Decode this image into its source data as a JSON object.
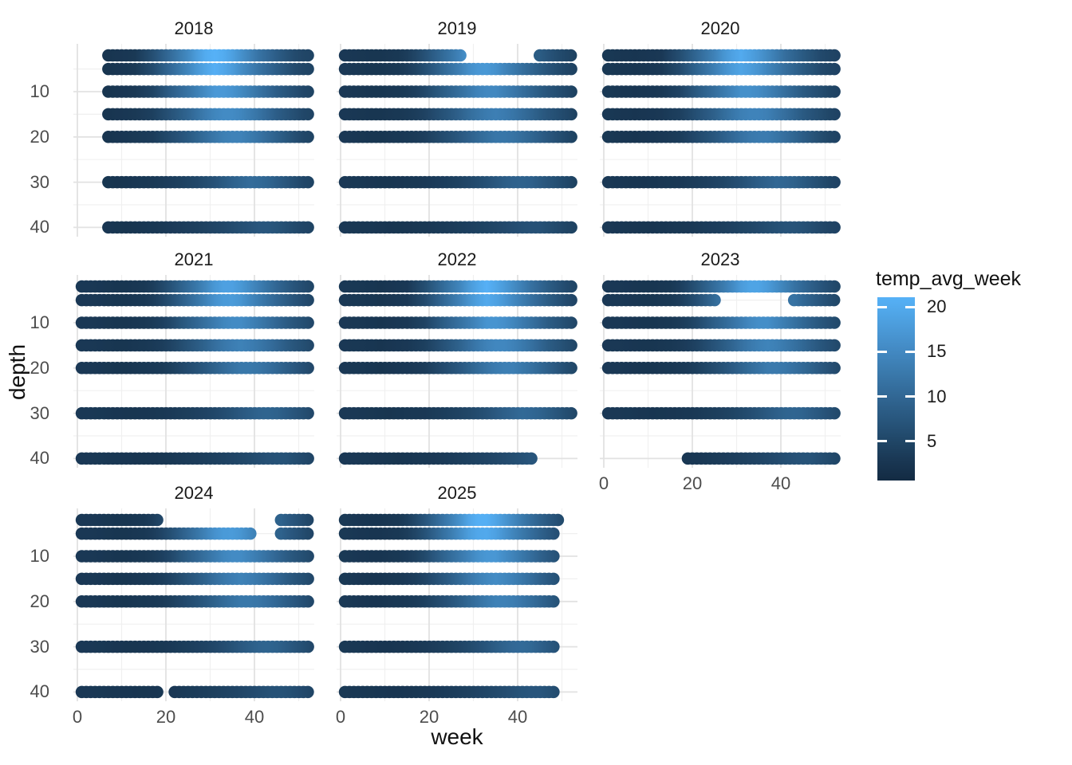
{
  "figure": {
    "background": "#ffffff"
  },
  "axes": {
    "x_title": "week",
    "y_title": "depth",
    "x_ticks": [
      0,
      20,
      40
    ],
    "x_minor": [
      10,
      30,
      50
    ],
    "y_ticks": [
      10,
      20,
      30,
      40
    ],
    "y_minor": [
      5,
      15,
      25,
      35
    ]
  },
  "legend": {
    "title": "temp_avg_week",
    "ticks": [
      20,
      15,
      10,
      5
    ],
    "bar_min": 0.6,
    "bar_max": 21.1
  },
  "colors": {
    "low": "#132B43",
    "high": "#56B1F7",
    "t_low": 1,
    "t_high": 21,
    "grid_major": "#e2e2e2",
    "grid_minor": "#f0f0f0",
    "strip_text": "#1a1a1a",
    "tick_text": "#4d4d4d",
    "axis_title_text": "#111111"
  },
  "chart_data": {
    "type": "scatter",
    "title": "",
    "xlabel": "week",
    "ylabel": "depth",
    "color_label": "temp_avg_week",
    "facet_by": "year",
    "x_range": [
      1,
      53
    ],
    "y_axis_reversed_depth": true,
    "depths": [
      2,
      5,
      10,
      15,
      20,
      30,
      40
    ],
    "color_range": [
      1,
      21
    ],
    "legend_position": "right",
    "grid": true,
    "depth_temp_knots": {
      "2": [
        [
          1,
          3
        ],
        [
          8,
          2.5
        ],
        [
          14,
          3
        ],
        [
          18,
          6
        ],
        [
          22,
          10
        ],
        [
          26,
          14
        ],
        [
          29,
          18
        ],
        [
          32,
          20
        ],
        [
          35,
          18
        ],
        [
          38,
          15
        ],
        [
          42,
          11
        ],
        [
          46,
          8
        ],
        [
          50,
          5.5
        ],
        [
          53,
          4.5
        ]
      ],
      "5": [
        [
          1,
          3
        ],
        [
          8,
          2.5
        ],
        [
          14,
          3
        ],
        [
          18,
          5.5
        ],
        [
          22,
          9.5
        ],
        [
          26,
          13.5
        ],
        [
          29,
          17
        ],
        [
          32,
          19
        ],
        [
          35,
          17.5
        ],
        [
          38,
          14.5
        ],
        [
          42,
          11
        ],
        [
          46,
          8
        ],
        [
          50,
          5.5
        ],
        [
          53,
          4.5
        ]
      ],
      "10": [
        [
          1,
          3
        ],
        [
          8,
          2.5
        ],
        [
          14,
          3
        ],
        [
          18,
          4.5
        ],
        [
          22,
          8
        ],
        [
          26,
          11
        ],
        [
          29,
          13.5
        ],
        [
          32,
          16
        ],
        [
          35,
          16
        ],
        [
          38,
          14
        ],
        [
          42,
          11
        ],
        [
          46,
          8
        ],
        [
          50,
          6
        ],
        [
          53,
          4.5
        ]
      ],
      "15": [
        [
          1,
          3
        ],
        [
          8,
          2.5
        ],
        [
          14,
          3
        ],
        [
          18,
          4
        ],
        [
          22,
          6.5
        ],
        [
          26,
          9
        ],
        [
          29,
          11.5
        ],
        [
          32,
          13.5
        ],
        [
          35,
          14.5
        ],
        [
          38,
          13.5
        ],
        [
          42,
          11
        ],
        [
          46,
          8
        ],
        [
          50,
          6
        ],
        [
          53,
          4.5
        ]
      ],
      "20": [
        [
          1,
          3
        ],
        [
          8,
          2.5
        ],
        [
          14,
          3
        ],
        [
          18,
          3.5
        ],
        [
          22,
          5.5
        ],
        [
          26,
          7.5
        ],
        [
          29,
          9.5
        ],
        [
          32,
          11.5
        ],
        [
          35,
          13
        ],
        [
          38,
          13
        ],
        [
          42,
          11
        ],
        [
          46,
          8.5
        ],
        [
          50,
          6
        ],
        [
          53,
          4.5
        ]
      ],
      "30": [
        [
          1,
          3
        ],
        [
          10,
          2.5
        ],
        [
          18,
          3
        ],
        [
          24,
          4
        ],
        [
          28,
          5
        ],
        [
          32,
          6.5
        ],
        [
          36,
          8.5
        ],
        [
          40,
          10
        ],
        [
          43,
          9.5
        ],
        [
          46,
          8
        ],
        [
          50,
          6
        ],
        [
          53,
          4.5
        ]
      ],
      "40": [
        [
          1,
          3
        ],
        [
          12,
          2.5
        ],
        [
          20,
          3
        ],
        [
          28,
          4
        ],
        [
          34,
          5
        ],
        [
          38,
          6
        ],
        [
          42,
          7
        ],
        [
          45,
          7
        ],
        [
          48,
          6
        ],
        [
          51,
          5
        ],
        [
          53,
          4.5
        ]
      ]
    },
    "facets": [
      {
        "year": "2018",
        "row": 0,
        "col": 0,
        "show_x_axis": false,
        "adjust": {
          "amp": 1.1,
          "shift": -1
        },
        "segments": {
          "2": [
            [
              7,
              53
            ]
          ],
          "5": [
            [
              7,
              53
            ]
          ],
          "10": [
            [
              7,
              53
            ]
          ],
          "15": [
            [
              7,
              53
            ]
          ],
          "20": [
            [
              7,
              53
            ]
          ],
          "30": [
            [
              7,
              53
            ]
          ],
          "40": [
            [
              7,
              53
            ]
          ]
        }
      },
      {
        "year": "2019",
        "row": 0,
        "col": 1,
        "show_x_axis": false,
        "adjust": {
          "amp": 0.92,
          "shift": 0
        },
        "segments": {
          "2": [
            [
              1,
              28
            ],
            [
              45,
              53
            ]
          ],
          "5": [
            [
              1,
              53
            ]
          ],
          "10": [
            [
              1,
              53
            ]
          ],
          "15": [
            [
              1,
              53
            ]
          ],
          "20": [
            [
              1,
              53
            ]
          ],
          "30": [
            [
              1,
              53
            ]
          ],
          "40": [
            [
              1,
              53
            ]
          ]
        }
      },
      {
        "year": "2020",
        "row": 0,
        "col": 2,
        "show_x_axis": false,
        "adjust": {
          "amp": 1.0,
          "shift": -1
        },
        "segments": {
          "2": [
            [
              1,
              53
            ]
          ],
          "5": [
            [
              1,
              53
            ]
          ],
          "10": [
            [
              1,
              53
            ]
          ],
          "15": [
            [
              1,
              53
            ]
          ],
          "20": [
            [
              1,
              53
            ]
          ],
          "30": [
            [
              1,
              53
            ]
          ],
          "40": [
            [
              1,
              53
            ]
          ]
        }
      },
      {
        "year": "2021",
        "row": 1,
        "col": 0,
        "show_x_axis": false,
        "adjust": {
          "amp": 0.95,
          "shift": 2
        },
        "segments": {
          "2": [
            [
              1,
              53
            ]
          ],
          "5": [
            [
              1,
              53
            ]
          ],
          "10": [
            [
              1,
              53
            ]
          ],
          "15": [
            [
              1,
              53
            ]
          ],
          "20": [
            [
              1,
              53
            ]
          ],
          "30": [
            [
              1,
              53
            ]
          ],
          "40": [
            [
              1,
              53
            ]
          ]
        }
      },
      {
        "year": "2022",
        "row": 1,
        "col": 1,
        "show_x_axis": false,
        "adjust": {
          "amp": 1.05,
          "shift": 1
        },
        "segments": {
          "2": [
            [
              1,
              53
            ]
          ],
          "5": [
            [
              1,
              53
            ]
          ],
          "10": [
            [
              1,
              53
            ]
          ],
          "15": [
            [
              1,
              53
            ]
          ],
          "20": [
            [
              1,
              53
            ]
          ],
          "30": [
            [
              1,
              53
            ]
          ],
          "40": [
            [
              1,
              44
            ]
          ]
        }
      },
      {
        "year": "2023",
        "row": 1,
        "col": 2,
        "show_x_axis": true,
        "adjust": {
          "amp": 0.98,
          "shift": 2
        },
        "segments": {
          "2": [
            [
              1,
              53
            ]
          ],
          "5": [
            [
              1,
              26
            ],
            [
              43,
              53
            ]
          ],
          "10": [
            [
              1,
              53
            ]
          ],
          "15": [
            [
              1,
              53
            ]
          ],
          "20": [
            [
              1,
              53
            ]
          ],
          "30": [
            [
              1,
              53
            ]
          ],
          "40": [
            [
              19,
              53
            ]
          ]
        }
      },
      {
        "year": "2024",
        "row": 2,
        "col": 0,
        "show_x_axis": true,
        "adjust": {
          "amp": 0.95,
          "shift": 2
        },
        "segments": {
          "2": [
            [
              1,
              19
            ],
            [
              46,
              53
            ]
          ],
          "5": [
            [
              1,
              40
            ],
            [
              46,
              53
            ]
          ],
          "10": [
            [
              1,
              53
            ]
          ],
          "15": [
            [
              1,
              53
            ]
          ],
          "20": [
            [
              1,
              53
            ]
          ],
          "30": [
            [
              1,
              53
            ]
          ],
          "40": [
            [
              1,
              19
            ],
            [
              22,
              53
            ]
          ]
        }
      },
      {
        "year": "2025",
        "row": 2,
        "col": 1,
        "show_x_axis": true,
        "adjust": {
          "amp": 1.08,
          "shift": 0
        },
        "segments": {
          "2": [
            [
              1,
              50
            ]
          ],
          "5": [
            [
              1,
              49
            ]
          ],
          "10": [
            [
              1,
              49
            ]
          ],
          "15": [
            [
              1,
              49
            ]
          ],
          "20": [
            [
              1,
              49
            ]
          ],
          "30": [
            [
              1,
              49
            ]
          ],
          "40": [
            [
              1,
              49
            ]
          ]
        }
      }
    ]
  }
}
